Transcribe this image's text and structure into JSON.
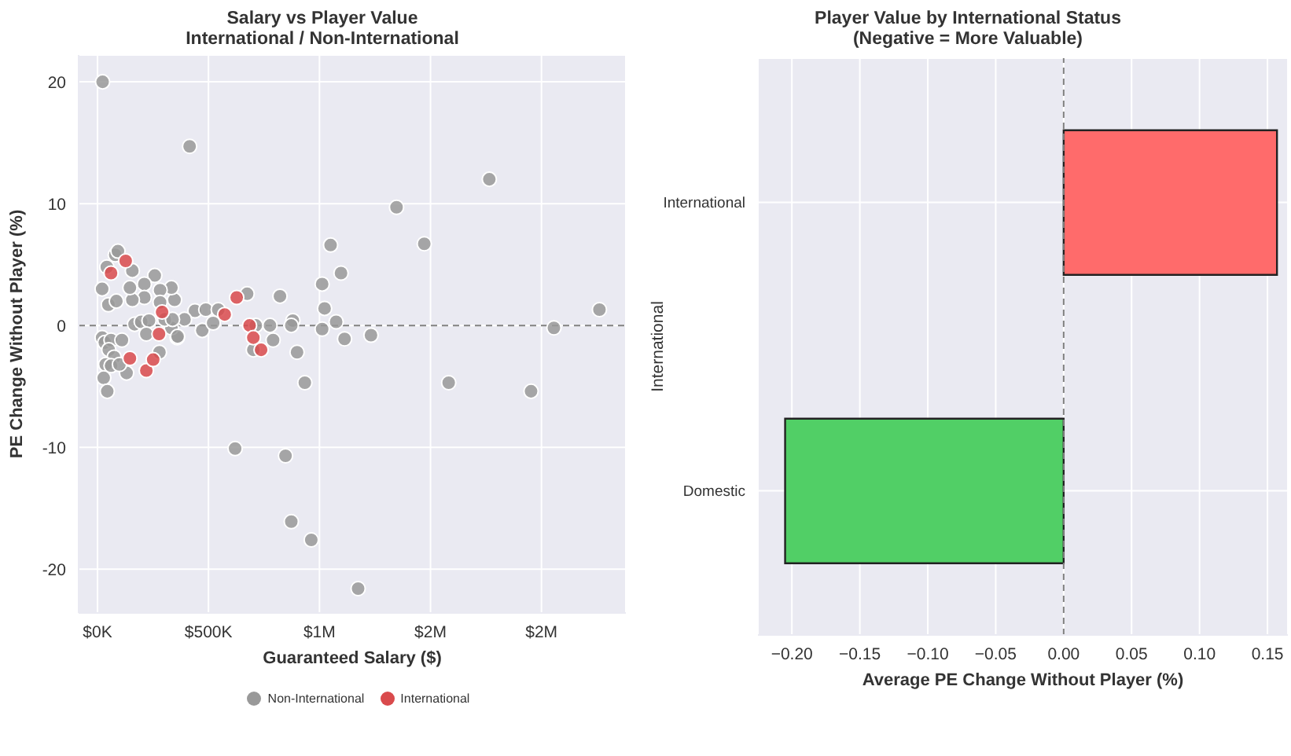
{
  "chart_data": [
    {
      "type": "scatter",
      "title": "Salary vs Player Value\nInternational / Non-International",
      "xlabel": "Guaranteed Salary ($)",
      "ylabel": "PE Change Without Player (%)",
      "xlim": [
        -85000,
        2380000
      ],
      "xticks": [
        {
          "value": 0,
          "label": "$0K"
        },
        {
          "value": 500000,
          "label": "$500K"
        },
        {
          "value": 1000000,
          "label": "$1M"
        },
        {
          "value": 1500000,
          "label": "$2M"
        },
        {
          "value": 2000000,
          "label": "$2M"
        }
      ],
      "ylim": [
        -23.6,
        22.2
      ],
      "yticks": [
        -20,
        -10,
        0,
        10,
        20
      ],
      "grid": true,
      "legend": "bottom",
      "marker": "circle",
      "ref_lines": [
        {
          "axis": "y",
          "value": 0,
          "color": "#808080",
          "line_style": "dashed"
        }
      ],
      "series": [
        {
          "name": "Non-International",
          "color": "#999999",
          "x": [
            23000,
            415000,
            1050000,
            1097000,
            1012000,
            1023000,
            1012000,
            1075000,
            1113000,
            620000,
            847000,
            873000,
            963000,
            674000,
            822000,
            777000,
            791000,
            880000,
            873000,
            899000,
            934000,
            702000,
            713000,
            439000,
            488000,
            472000,
            544000,
            521000,
            392000,
            359000,
            333000,
            347000,
            333000,
            282000,
            258000,
            282000,
            211000,
            211000,
            157000,
            146000,
            157000,
            80000,
            92000,
            42000,
            21000,
            49000,
            85000,
            167000,
            197000,
            232000,
            220000,
            303000,
            338000,
            361000,
            21000,
            33000,
            61000,
            110000,
            51000,
            75000,
            37000,
            61000,
            28000,
            44000,
            131000,
            279000,
            99000,
            1347000,
            1765000,
            1472000,
            1582000,
            1953000,
            2056000,
            2261000,
            1174000,
            1232000
          ],
          "values": [
            20.0,
            14.7,
            6.6,
            4.3,
            3.4,
            1.4,
            -0.3,
            0.3,
            -1.1,
            -10.1,
            -10.7,
            -16.1,
            -17.6,
            2.6,
            2.4,
            0,
            -1.2,
            0.4,
            0,
            -2.2,
            -4.7,
            -2.0,
            0,
            1.2,
            1.3,
            -0.4,
            1.3,
            0.2,
            0.5,
            -1.0,
            -0.2,
            2.1,
            3.1,
            2.9,
            4.1,
            1.9,
            3.4,
            2.3,
            2.1,
            3.1,
            4.5,
            5.8,
            6.1,
            4.8,
            3.0,
            1.7,
            2.0,
            0.1,
            0.3,
            0.4,
            -0.7,
            0.5,
            0.5,
            -0.9,
            -1.0,
            -1.4,
            -1.2,
            -1.2,
            -2.0,
            -2.6,
            -3.2,
            -3.3,
            -4.3,
            -5.4,
            -3.9,
            -2.2,
            -3.2,
            9.7,
            12.0,
            6.7,
            -4.7,
            -5.4,
            -0.2,
            1.3,
            -21.6,
            -0.8
          ]
        },
        {
          "name": "International",
          "color": "#d94a4c",
          "x": [
            61000,
            127000,
            291000,
            277000,
            146000,
            220000,
            251000,
            573000,
            627000,
            685000,
            702000,
            737000
          ],
          "values": [
            4.3,
            5.3,
            1.1,
            -0.7,
            -2.7,
            -3.7,
            -2.8,
            0.9,
            2.3,
            0,
            -1.0,
            -2.0
          ]
        }
      ]
    },
    {
      "type": "bar",
      "orientation": "horizontal",
      "title": "Player Value by International Status\n(Negative = More Valuable)",
      "xlabel": "Average PE Change Without Player (%)",
      "ylabel": "International",
      "categories": [
        "International",
        "Domestic"
      ],
      "values": [
        0.157,
        -0.205
      ],
      "colors": [
        "#ff6b6b",
        "#51cf66"
      ],
      "xlim": [
        -0.225,
        0.165
      ],
      "xticks": [
        {
          "value": -0.2,
          "label": "−0.20"
        },
        {
          "value": -0.15,
          "label": "−0.15"
        },
        {
          "value": -0.1,
          "label": "−0.10"
        },
        {
          "value": -0.05,
          "label": "−0.05"
        },
        {
          "value": 0,
          "label": "0.00"
        },
        {
          "value": 0.05,
          "label": "0.05"
        },
        {
          "value": 0.1,
          "label": "0.10"
        },
        {
          "value": 0.15,
          "label": "0.15"
        }
      ],
      "grid": true,
      "ref_lines": [
        {
          "axis": "x",
          "value": 0,
          "color": "#808080",
          "line_style": "dashed"
        }
      ]
    }
  ]
}
